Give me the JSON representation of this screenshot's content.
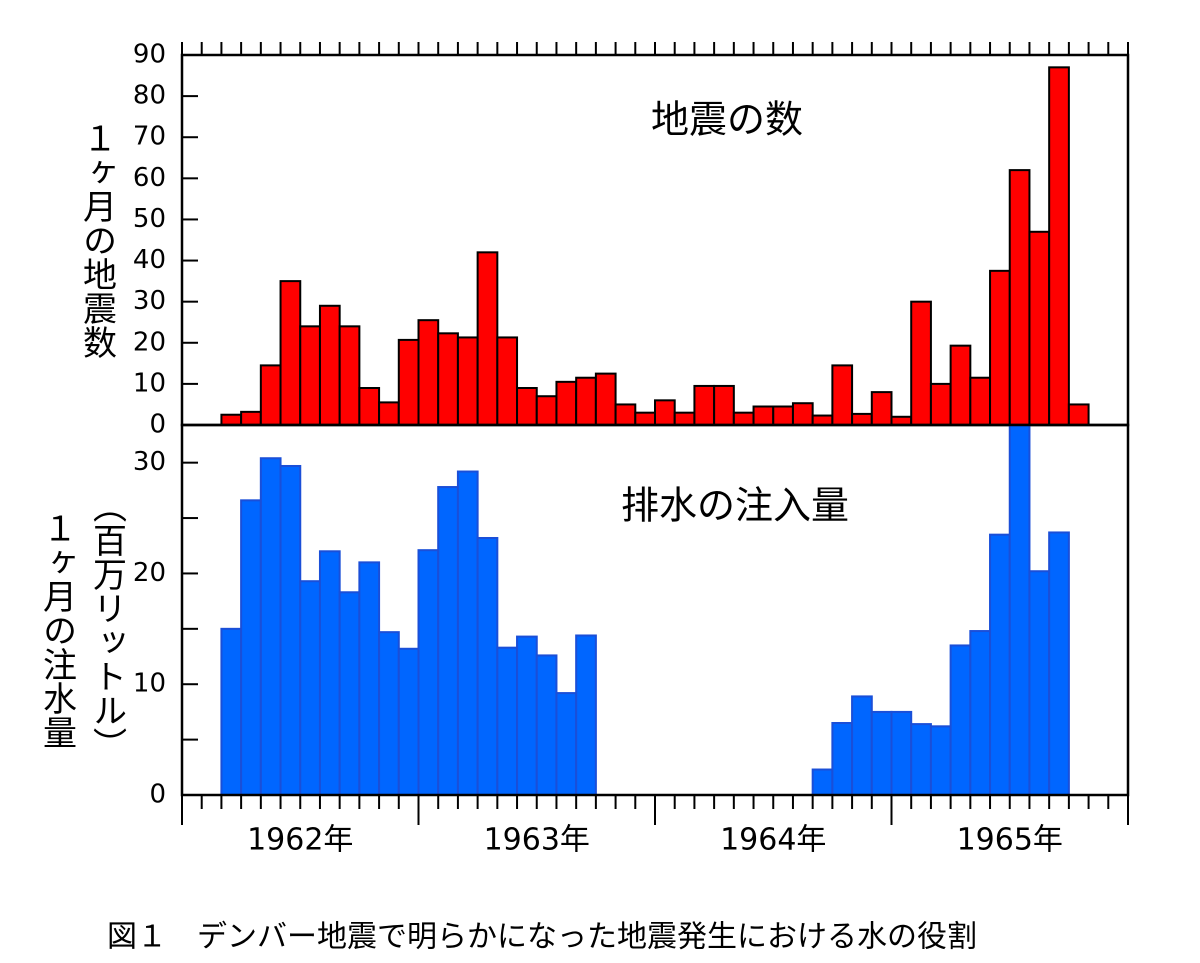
{
  "chart_data": [
    {
      "type": "bar",
      "title": "地震の数",
      "ylabel": "１ヶ月の地震数",
      "color": "#ff0000",
      "edge_color": "#000000",
      "categories": [
        null,
        null,
        null,
        null,
        null,
        null,
        null,
        null,
        null,
        null,
        null,
        null,
        null,
        null,
        null,
        null,
        null,
        null,
        null,
        null,
        null,
        null,
        null,
        null,
        null,
        null,
        null,
        null,
        null,
        null,
        null,
        null,
        null,
        null,
        null,
        null,
        null,
        null,
        null,
        null,
        null,
        null,
        null,
        null,
        null,
        null,
        null,
        null
      ],
      "values": [
        null,
        null,
        2.5,
        3.2,
        14.5,
        35,
        24,
        29,
        24,
        9,
        5.5,
        20.7,
        25.5,
        22.3,
        21.3,
        42,
        21.3,
        9,
        7,
        10.5,
        11.5,
        12.5,
        5,
        3,
        6,
        3,
        9.5,
        9.5,
        3,
        4.5,
        4.5,
        5.3,
        2.3,
        14.5,
        2.7,
        8,
        2,
        30,
        10,
        19.3,
        11.5,
        37.5,
        62,
        47,
        87,
        5,
        null,
        null
      ],
      "ylim": [
        0,
        90
      ],
      "yticks": [
        0,
        10,
        20,
        30,
        40,
        50,
        60,
        70,
        80,
        90
      ]
    },
    {
      "type": "bar",
      "title": "排水の注入量",
      "ylabel": "１ヶ月の注水量",
      "ylabel2": "（百万リットル）",
      "color": "#0066ff",
      "edge_color": "#1a4fd8",
      "categories": [
        null,
        null,
        null,
        null,
        null,
        null,
        null,
        null,
        null,
        null,
        null,
        null,
        null,
        null,
        null,
        null,
        null,
        null,
        null,
        null,
        null,
        null,
        null,
        null,
        null,
        null,
        null,
        null,
        null,
        null,
        null,
        null,
        null,
        null,
        null,
        null,
        null,
        null,
        null,
        null,
        null,
        null,
        null,
        null,
        null,
        null,
        null,
        null
      ],
      "values": [
        null,
        null,
        15,
        26.6,
        30.4,
        29.7,
        19.3,
        22,
        18.3,
        21,
        14.7,
        13.2,
        22.1,
        27.8,
        29.2,
        23.2,
        13.3,
        14.3,
        12.6,
        9.2,
        14.4,
        null,
        null,
        null,
        null,
        null,
        null,
        null,
        null,
        null,
        null,
        null,
        2.3,
        6.5,
        8.9,
        7.5,
        7.5,
        6.4,
        6.2,
        13.5,
        14.8,
        23.5,
        33.4,
        20.2,
        23.7,
        null,
        null,
        null
      ],
      "ylim": [
        0,
        33.4
      ],
      "yticks": [
        0,
        10,
        20,
        30
      ],
      "minor_yticks": [
        5,
        15,
        25
      ],
      "year_labels": [
        "1962年",
        "1963年",
        "1964年",
        "1965年"
      ]
    }
  ],
  "caption": "図１　デンバー地震で明らかになった地震発生における水の役割"
}
